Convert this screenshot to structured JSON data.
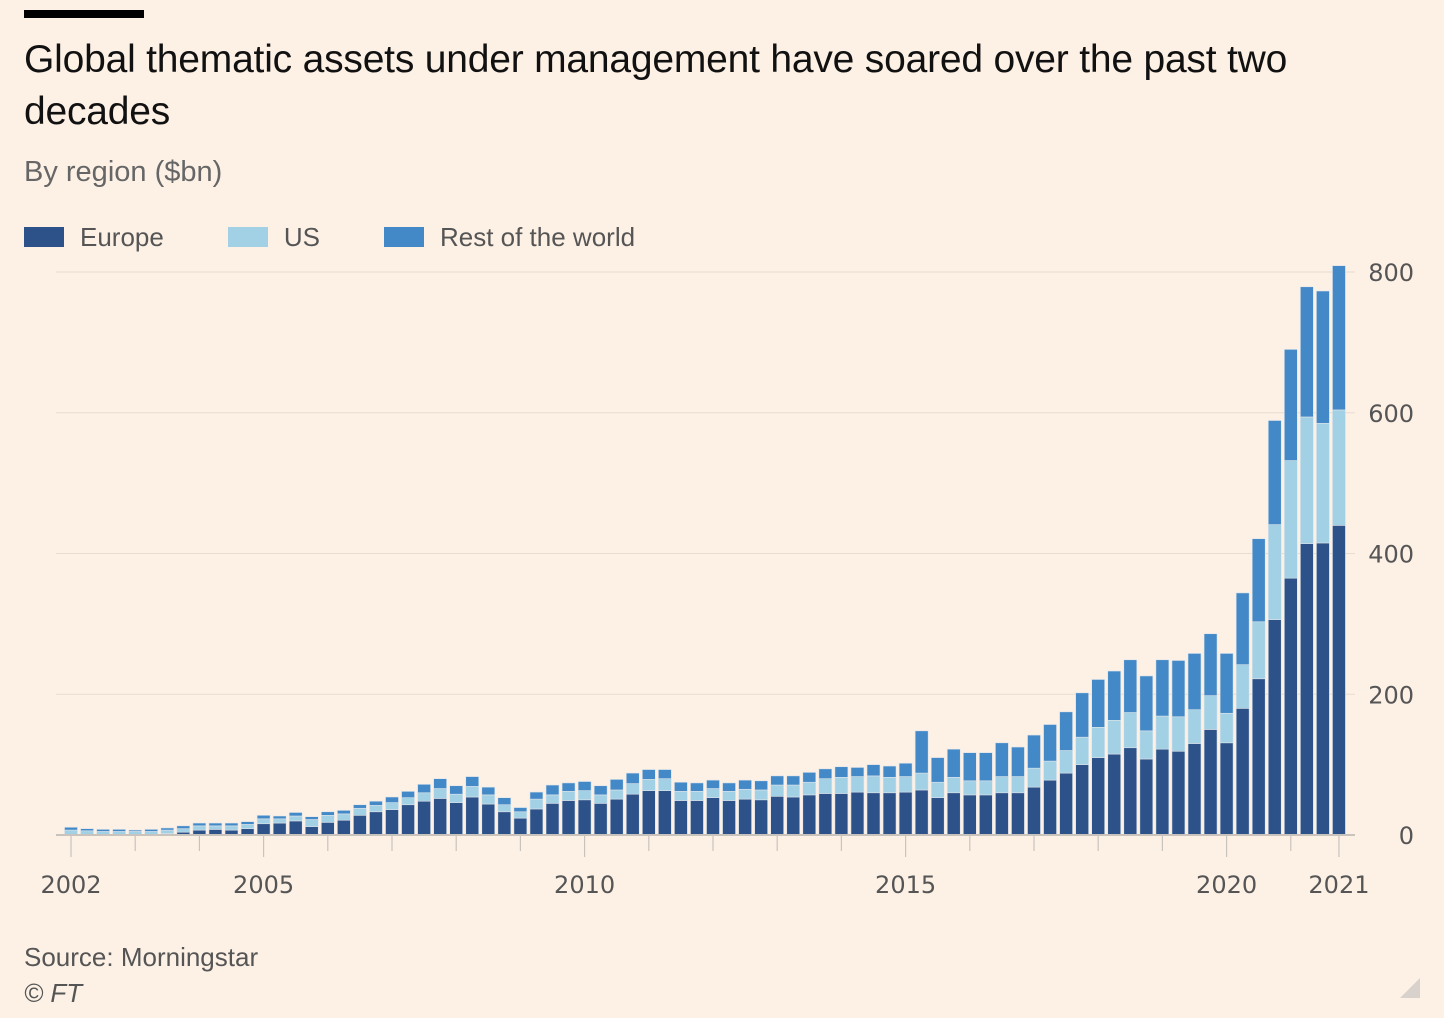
{
  "header": {
    "title": "Global thematic assets under management have soared over the past two decades",
    "subtitle": "By region ($bn)"
  },
  "legend": [
    {
      "label": "Europe",
      "color": "#2d5289"
    },
    {
      "label": "US",
      "color": "#a2d0e4"
    },
    {
      "label": "Rest of the world",
      "color": "#4389c7"
    }
  ],
  "footer": {
    "source": "Source: Morningstar",
    "copyright": "© FT"
  },
  "chart_data": {
    "type": "bar",
    "stacked": true,
    "title": "Global thematic assets under management have soared over the past two decades",
    "subtitle": "By region ($bn)",
    "xlabel": "",
    "ylabel": "$bn",
    "ylim": [
      0,
      800
    ],
    "yticks": [
      0,
      200,
      400,
      600,
      800
    ],
    "y_axis_side": "right",
    "grid": true,
    "legend_position": "top-left",
    "frequency": "quarterly",
    "x_tick_labels": [
      {
        "index": 0,
        "label": "2002"
      },
      {
        "index": 12,
        "label": "2005"
      },
      {
        "index": 32,
        "label": "2010"
      },
      {
        "index": 52,
        "label": "2015"
      },
      {
        "index": 72,
        "label": "2020"
      },
      {
        "index": 79,
        "label": "2021"
      }
    ],
    "series": [
      {
        "name": "Europe",
        "color": "#2d5289",
        "values": [
          1,
          1,
          1,
          1,
          1,
          1,
          2,
          4,
          7,
          8,
          7,
          9,
          16,
          17,
          20,
          12,
          18,
          21,
          28,
          33,
          36,
          43,
          48,
          52,
          46,
          54,
          44,
          33,
          24,
          37,
          45,
          49,
          50,
          45,
          51,
          58,
          63,
          63,
          49,
          49,
          53,
          49,
          51,
          50,
          55,
          54,
          57,
          59,
          59,
          61,
          60,
          60,
          61,
          64,
          53,
          60,
          57,
          57,
          60,
          60,
          68,
          78,
          88,
          100,
          110,
          115,
          124,
          108,
          122,
          119,
          130,
          150,
          131,
          180,
          222,
          306,
          365,
          414,
          415,
          440
        ]
      },
      {
        "name": "US",
        "color": "#a2d0e4",
        "values": [
          6,
          5,
          4,
          4,
          4,
          4,
          5,
          5,
          6,
          5,
          6,
          6,
          7,
          6,
          7,
          10,
          10,
          9,
          10,
          9,
          10,
          10,
          12,
          14,
          12,
          15,
          13,
          10,
          9,
          14,
          12,
          13,
          13,
          12,
          13,
          15,
          16,
          17,
          13,
          13,
          13,
          13,
          14,
          14,
          16,
          17,
          18,
          21,
          23,
          22,
          24,
          22,
          22,
          24,
          22,
          22,
          20,
          20,
          23,
          23,
          27,
          27,
          32,
          39,
          43,
          48,
          50,
          40,
          47,
          49,
          48,
          48,
          42,
          62,
          81,
          135,
          167,
          180,
          170,
          164
        ]
      },
      {
        "name": "Rest of the world",
        "color": "#4389c7",
        "values": [
          4,
          3,
          3,
          3,
          2,
          3,
          3,
          4,
          4,
          4,
          4,
          4,
          5,
          4,
          5,
          4,
          5,
          5,
          5,
          6,
          8,
          9,
          12,
          14,
          12,
          14,
          11,
          10,
          6,
          10,
          14,
          12,
          13,
          13,
          15,
          15,
          14,
          13,
          13,
          12,
          12,
          12,
          13,
          13,
          13,
          13,
          14,
          14,
          15,
          13,
          16,
          16,
          19,
          60,
          35,
          40,
          40,
          40,
          48,
          42,
          47,
          52,
          55,
          63,
          68,
          70,
          75,
          78,
          80,
          80,
          80,
          88,
          85,
          102,
          118,
          148,
          158,
          185,
          188,
          205
        ]
      }
    ]
  }
}
